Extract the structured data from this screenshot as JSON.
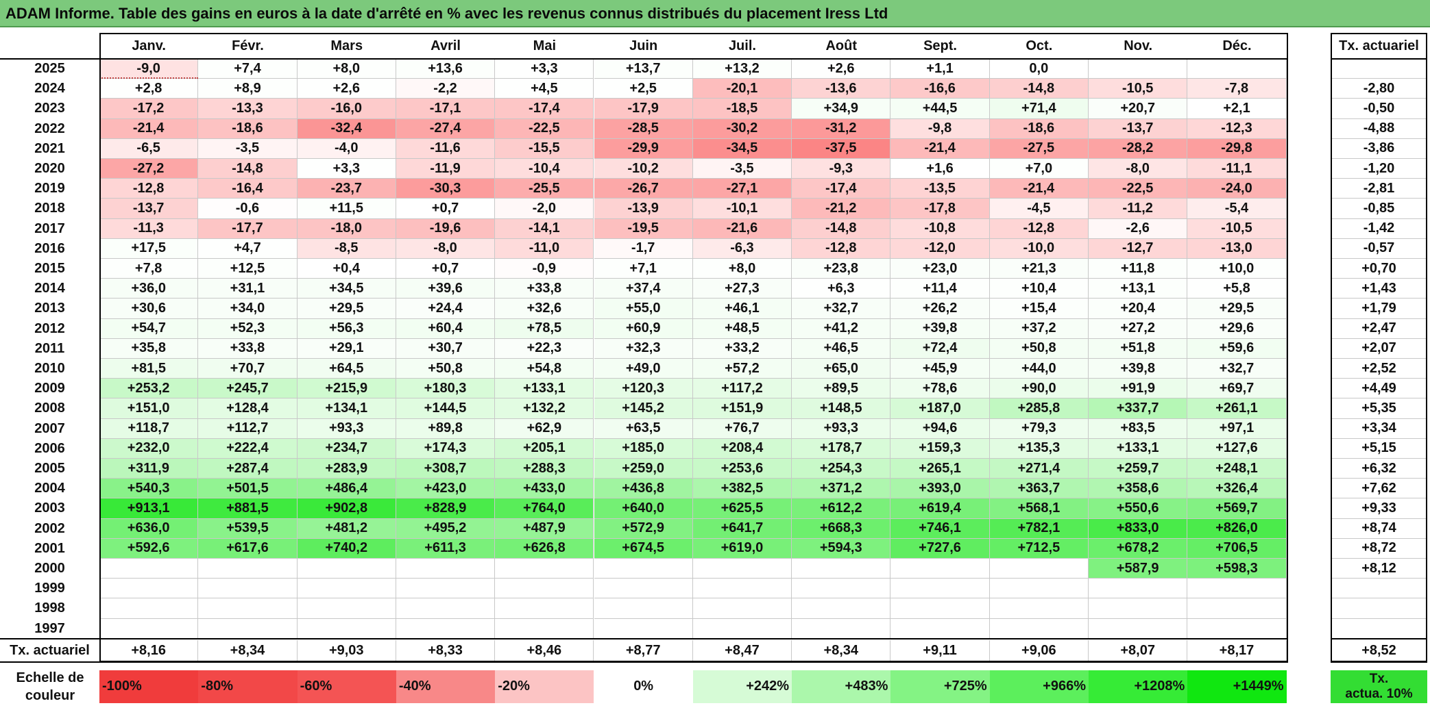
{
  "title": "ADAM Informe. Table des gains en euros à la date d'arrêté en % avec les revenus connus distribués du placement Iress Ltd",
  "months": [
    "Janv.",
    "Févr.",
    "Mars",
    "Avril",
    "Mai",
    "Juin",
    "Juil.",
    "Août",
    "Sept.",
    "Oct.",
    "Nov.",
    "Déc."
  ],
  "rate_header": "Tx. actuariel",
  "rows": [
    {
      "year": "2025",
      "values": [
        "-9,0",
        "+7,4",
        "+8,0",
        "+13,6",
        "+3,3",
        "+13,7",
        "+13,2",
        "+2,6",
        "+1,1",
        "0,0",
        "",
        ""
      ],
      "rate": ""
    },
    {
      "year": "2024",
      "values": [
        "+2,8",
        "+8,9",
        "+2,6",
        "-2,2",
        "+4,5",
        "+2,5",
        "-20,1",
        "-13,6",
        "-16,6",
        "-14,8",
        "-10,5",
        "-7,8"
      ],
      "rate": "-2,80"
    },
    {
      "year": "2023",
      "values": [
        "-17,2",
        "-13,3",
        "-16,0",
        "-17,1",
        "-17,4",
        "-17,9",
        "-18,5",
        "+34,9",
        "+44,5",
        "+71,4",
        "+20,7",
        "+2,1"
      ],
      "rate": "-0,50"
    },
    {
      "year": "2022",
      "values": [
        "-21,4",
        "-18,6",
        "-32,4",
        "-27,4",
        "-22,5",
        "-28,5",
        "-30,2",
        "-31,2",
        "-9,8",
        "-18,6",
        "-13,7",
        "-12,3"
      ],
      "rate": "-4,88"
    },
    {
      "year": "2021",
      "values": [
        "-6,5",
        "-3,5",
        "-4,0",
        "-11,6",
        "-15,5",
        "-29,9",
        "-34,5",
        "-37,5",
        "-21,4",
        "-27,5",
        "-28,2",
        "-29,8"
      ],
      "rate": "-3,86"
    },
    {
      "year": "2020",
      "values": [
        "-27,2",
        "-14,8",
        "+3,3",
        "-11,9",
        "-10,4",
        "-10,2",
        "-3,5",
        "-9,3",
        "+1,6",
        "+7,0",
        "-8,0",
        "-11,1"
      ],
      "rate": "-1,20"
    },
    {
      "year": "2019",
      "values": [
        "-12,8",
        "-16,4",
        "-23,7",
        "-30,3",
        "-25,5",
        "-26,7",
        "-27,1",
        "-17,4",
        "-13,5",
        "-21,4",
        "-22,5",
        "-24,0"
      ],
      "rate": "-2,81"
    },
    {
      "year": "2018",
      "values": [
        "-13,7",
        "-0,6",
        "+11,5",
        "+0,7",
        "-2,0",
        "-13,9",
        "-10,1",
        "-21,2",
        "-17,8",
        "-4,5",
        "-11,2",
        "-5,4"
      ],
      "rate": "-0,85"
    },
    {
      "year": "2017",
      "values": [
        "-11,3",
        "-17,7",
        "-18,0",
        "-19,6",
        "-14,1",
        "-19,5",
        "-21,6",
        "-14,8",
        "-10,8",
        "-12,8",
        "-2,6",
        "-10,5"
      ],
      "rate": "-1,42"
    },
    {
      "year": "2016",
      "values": [
        "+17,5",
        "+4,7",
        "-8,5",
        "-8,0",
        "-11,0",
        "-1,7",
        "-6,3",
        "-12,8",
        "-12,0",
        "-10,0",
        "-12,7",
        "-13,0"
      ],
      "rate": "-0,57"
    },
    {
      "year": "2015",
      "values": [
        "+7,8",
        "+12,5",
        "+0,4",
        "+0,7",
        "-0,9",
        "+7,1",
        "+8,0",
        "+23,8",
        "+23,0",
        "+21,3",
        "+11,8",
        "+10,0"
      ],
      "rate": "+0,70"
    },
    {
      "year": "2014",
      "values": [
        "+36,0",
        "+31,1",
        "+34,5",
        "+39,6",
        "+33,8",
        "+37,4",
        "+27,3",
        "+6,3",
        "+11,4",
        "+10,4",
        "+13,1",
        "+5,8"
      ],
      "rate": "+1,43"
    },
    {
      "year": "2013",
      "values": [
        "+30,6",
        "+34,0",
        "+29,5",
        "+24,4",
        "+32,6",
        "+55,0",
        "+46,1",
        "+32,7",
        "+26,2",
        "+15,4",
        "+20,4",
        "+29,5"
      ],
      "rate": "+1,79"
    },
    {
      "year": "2012",
      "values": [
        "+54,7",
        "+52,3",
        "+56,3",
        "+60,4",
        "+78,5",
        "+60,9",
        "+48,5",
        "+41,2",
        "+39,8",
        "+37,2",
        "+27,2",
        "+29,6"
      ],
      "rate": "+2,47"
    },
    {
      "year": "2011",
      "values": [
        "+35,8",
        "+33,8",
        "+29,1",
        "+30,7",
        "+22,3",
        "+32,3",
        "+33,2",
        "+46,5",
        "+72,4",
        "+50,8",
        "+51,8",
        "+59,6"
      ],
      "rate": "+2,07"
    },
    {
      "year": "2010",
      "values": [
        "+81,5",
        "+70,7",
        "+64,5",
        "+50,8",
        "+54,8",
        "+49,0",
        "+57,2",
        "+65,0",
        "+45,9",
        "+44,0",
        "+39,8",
        "+32,7"
      ],
      "rate": "+2,52"
    },
    {
      "year": "2009",
      "values": [
        "+253,2",
        "+245,7",
        "+215,9",
        "+180,3",
        "+133,1",
        "+120,3",
        "+117,2",
        "+89,5",
        "+78,6",
        "+90,0",
        "+91,9",
        "+69,7"
      ],
      "rate": "+4,49"
    },
    {
      "year": "2008",
      "values": [
        "+151,0",
        "+128,4",
        "+134,1",
        "+144,5",
        "+132,2",
        "+145,2",
        "+151,9",
        "+148,5",
        "+187,0",
        "+285,8",
        "+337,7",
        "+261,1"
      ],
      "rate": "+5,35"
    },
    {
      "year": "2007",
      "values": [
        "+118,7",
        "+112,7",
        "+93,3",
        "+89,8",
        "+62,9",
        "+63,5",
        "+76,7",
        "+93,3",
        "+94,6",
        "+79,3",
        "+83,5",
        "+97,1"
      ],
      "rate": "+3,34"
    },
    {
      "year": "2006",
      "values": [
        "+232,0",
        "+222,4",
        "+234,7",
        "+174,3",
        "+205,1",
        "+185,0",
        "+208,4",
        "+178,7",
        "+159,3",
        "+135,3",
        "+133,1",
        "+127,6"
      ],
      "rate": "+5,15"
    },
    {
      "year": "2005",
      "values": [
        "+311,9",
        "+287,4",
        "+283,9",
        "+308,7",
        "+288,3",
        "+259,0",
        "+253,6",
        "+254,3",
        "+265,1",
        "+271,4",
        "+259,7",
        "+248,1"
      ],
      "rate": "+6,32"
    },
    {
      "year": "2004",
      "values": [
        "+540,3",
        "+501,5",
        "+486,4",
        "+423,0",
        "+433,0",
        "+436,8",
        "+382,5",
        "+371,2",
        "+393,0",
        "+363,7",
        "+358,6",
        "+326,4"
      ],
      "rate": "+7,62"
    },
    {
      "year": "2003",
      "values": [
        "+913,1",
        "+881,5",
        "+902,8",
        "+828,9",
        "+764,0",
        "+640,0",
        "+625,5",
        "+612,2",
        "+619,4",
        "+568,1",
        "+550,6",
        "+569,7"
      ],
      "rate": "+9,33"
    },
    {
      "year": "2002",
      "values": [
        "+636,0",
        "+539,5",
        "+481,2",
        "+495,2",
        "+487,9",
        "+572,9",
        "+641,7",
        "+668,3",
        "+746,1",
        "+782,1",
        "+833,0",
        "+826,0"
      ],
      "rate": "+8,74"
    },
    {
      "year": "2001",
      "values": [
        "+592,6",
        "+617,6",
        "+740,2",
        "+611,3",
        "+626,8",
        "+674,5",
        "+619,0",
        "+594,3",
        "+727,6",
        "+712,5",
        "+678,2",
        "+706,5"
      ],
      "rate": "+8,72"
    },
    {
      "year": "2000",
      "values": [
        "",
        "",
        "",
        "",
        "",
        "",
        "",
        "",
        "",
        "",
        "+587,9",
        "+598,3"
      ],
      "rate": "+8,12"
    },
    {
      "year": "1999",
      "values": [
        "",
        "",
        "",
        "",
        "",
        "",
        "",
        "",
        "",
        "",
        "",
        ""
      ],
      "rate": ""
    },
    {
      "year": "1998",
      "values": [
        "",
        "",
        "",
        "",
        "",
        "",
        "",
        "",
        "",
        "",
        "",
        ""
      ],
      "rate": ""
    },
    {
      "year": "1997",
      "values": [
        "",
        "",
        "",
        "",
        "",
        "",
        "",
        "",
        "",
        "",
        "",
        ""
      ],
      "rate": ""
    }
  ],
  "footer": {
    "label": "Tx. actuariel",
    "values": [
      "+8,16",
      "+8,34",
      "+9,03",
      "+8,33",
      "+8,46",
      "+8,77",
      "+8,47",
      "+8,34",
      "+9,11",
      "+9,06",
      "+8,07",
      "+8,17"
    ],
    "total": "+8,52"
  },
  "legend": {
    "label_line1": "Echelle de",
    "label_line2": "couleur",
    "items": [
      {
        "text": "-100%",
        "color": "#f03c3c",
        "align": "left"
      },
      {
        "text": "-80%",
        "color": "#f24848",
        "align": "left"
      },
      {
        "text": "-60%",
        "color": "#f45454",
        "align": "left"
      },
      {
        "text": "-40%",
        "color": "#f88888",
        "align": "left"
      },
      {
        "text": "-20%",
        "color": "#fcc4c4",
        "align": "left"
      },
      {
        "text": "0%",
        "color": "#ffffff",
        "align": "center"
      },
      {
        "text": "+242%",
        "color": "#d6fbd6",
        "align": "right"
      },
      {
        "text": "+483%",
        "color": "#abf7ab",
        "align": "right"
      },
      {
        "text": "+725%",
        "color": "#84f384",
        "align": "right"
      },
      {
        "text": "+966%",
        "color": "#5cef5c",
        "align": "right"
      },
      {
        "text": "+1208%",
        "color": "#36eb36",
        "align": "right"
      },
      {
        "text": "+1449%",
        "color": "#10e710",
        "align": "right"
      }
    ],
    "rate_label_line1": "Tx.",
    "rate_label_line2": "actua. 10%",
    "rate_color": "#33dd33"
  }
}
